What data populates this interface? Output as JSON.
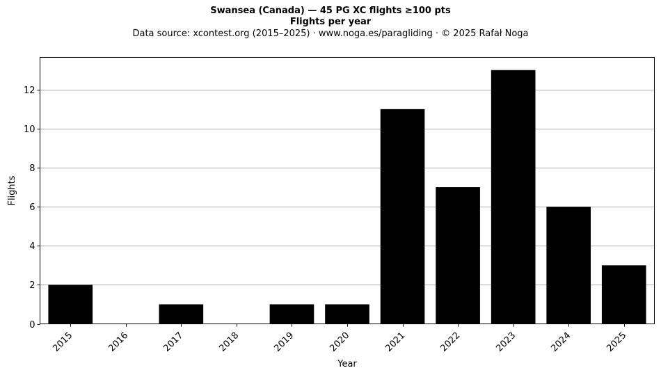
{
  "chart_data": {
    "type": "bar",
    "title": "Swansea (Canada)  —  45 PG XC flights ≥100 pts",
    "subtitle": "Flights per year",
    "source": "Data source: xcontest.org (2015–2025)  ·  www.noga.es/paragliding  ·  © 2025 Rafał Noga",
    "xlabel": "Year",
    "ylabel": "Flights",
    "categories": [
      "2015",
      "2016",
      "2017",
      "2018",
      "2019",
      "2020",
      "2021",
      "2022",
      "2023",
      "2024",
      "2025"
    ],
    "values": [
      2,
      0,
      1,
      0,
      1,
      1,
      11,
      7,
      13,
      6,
      3
    ],
    "ylim": [
      0,
      13.65
    ],
    "yticks": [
      0,
      2,
      4,
      6,
      8,
      10,
      12
    ],
    "grid": "horizontal",
    "bar_color": "#000000",
    "grid_color": "#b0b0b0"
  }
}
